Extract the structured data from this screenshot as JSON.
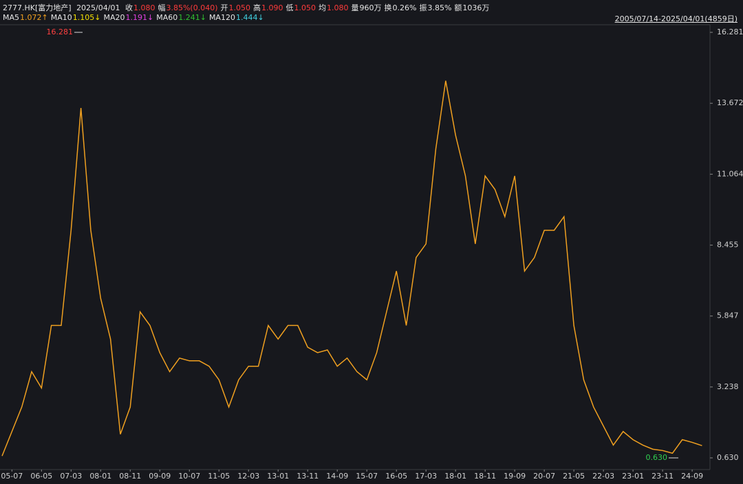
{
  "header": {
    "symbol": "2777.HK[富力地产]",
    "date": "2025/04/01",
    "quote": [
      {
        "label": "收",
        "value": "1.080",
        "color": "#ff3b3b"
      },
      {
        "label": "幅",
        "value": "3.85%(0.040)",
        "color": "#ff3b3b"
      },
      {
        "label": "开",
        "value": "1.050",
        "color": "#ff3b3b"
      },
      {
        "label": "高",
        "value": "1.090",
        "color": "#ff3b3b"
      },
      {
        "label": "低",
        "value": "1.050",
        "color": "#ff3b3b"
      },
      {
        "label": "均",
        "value": "1.080",
        "color": "#ff3b3b"
      },
      {
        "label": "量",
        "value": "960万",
        "color": "#e6e6e6"
      },
      {
        "label": "换",
        "value": "0.26%",
        "color": "#e6e6e6"
      },
      {
        "label": "振",
        "value": "3.85%",
        "color": "#e6e6e6"
      },
      {
        "label": "额",
        "value": "1036万",
        "color": "#e6e6e6"
      }
    ],
    "ma": [
      {
        "name": "MA5",
        "value": "1.072↑",
        "color": "#f0a020"
      },
      {
        "name": "MA10",
        "value": "1.105↓",
        "color": "#f5e000"
      },
      {
        "name": "MA20",
        "value": "1.191↓",
        "color": "#e040e0"
      },
      {
        "name": "MA60",
        "value": "1.241↓",
        "color": "#30c030"
      },
      {
        "name": "MA120",
        "value": "1.444↓",
        "color": "#40d0e0"
      }
    ],
    "range": "2005/07/14-2025/04/01(4859日)"
  },
  "chart_data": {
    "type": "line",
    "categories": [
      null,
      "05-07",
      null,
      null,
      "06-05",
      null,
      null,
      "07-03",
      null,
      null,
      "08-01",
      null,
      null,
      "08-11",
      null,
      null,
      "09-09",
      null,
      null,
      "10-07",
      null,
      null,
      "11-05",
      null,
      null,
      "12-03",
      null,
      null,
      "13-01",
      null,
      null,
      "13-11",
      null,
      null,
      "14-09",
      null,
      null,
      "15-07",
      null,
      null,
      "16-05",
      null,
      null,
      "17-03",
      null,
      null,
      "18-01",
      null,
      null,
      "18-11",
      null,
      null,
      "19-09",
      null,
      null,
      "20-07",
      null,
      null,
      "21-05",
      null,
      null,
      "22-03",
      null,
      null,
      "23-01",
      null,
      null,
      "23-11",
      null,
      null,
      "24-09",
      null
    ],
    "values": [
      0.7,
      1.6,
      2.5,
      3.8,
      3.2,
      5.5,
      5.5,
      9,
      13.5,
      9,
      6.5,
      5,
      1.5,
      2.5,
      6,
      5.5,
      4.5,
      3.8,
      4.3,
      4.2,
      4.2,
      4.0,
      3.5,
      2.5,
      3.5,
      4.0,
      4.0,
      5.5,
      5.0,
      5.5,
      5.5,
      4.7,
      4.5,
      4.6,
      4.0,
      4.3,
      3.8,
      3.5,
      4.5,
      6.0,
      7.5,
      5.5,
      8.0,
      8.5,
      12.0,
      14.5,
      12.5,
      11.0,
      8.5,
      11.0,
      10.5,
      9.5,
      11.0,
      7.5,
      8.0,
      9.0,
      9.0,
      9.5,
      5.5,
      3.5,
      2.5,
      1.8,
      1.1,
      1.6,
      1.3,
      1.1,
      0.95,
      0.9,
      0.8,
      1.3,
      1.2,
      1.08
    ],
    "color": "#f0a020",
    "ylim": [
      0.2,
      16.56
    ],
    "yticks": [
      {
        "value": 0.63,
        "label": "0.630"
      },
      3.238,
      5.847,
      8.455,
      11.064,
      13.672,
      16.281
    ],
    "grid": false,
    "annotations": [
      {
        "text": "16.281",
        "value": 16.281
      },
      {
        "text": "0.630",
        "value": 0.63
      }
    ]
  }
}
